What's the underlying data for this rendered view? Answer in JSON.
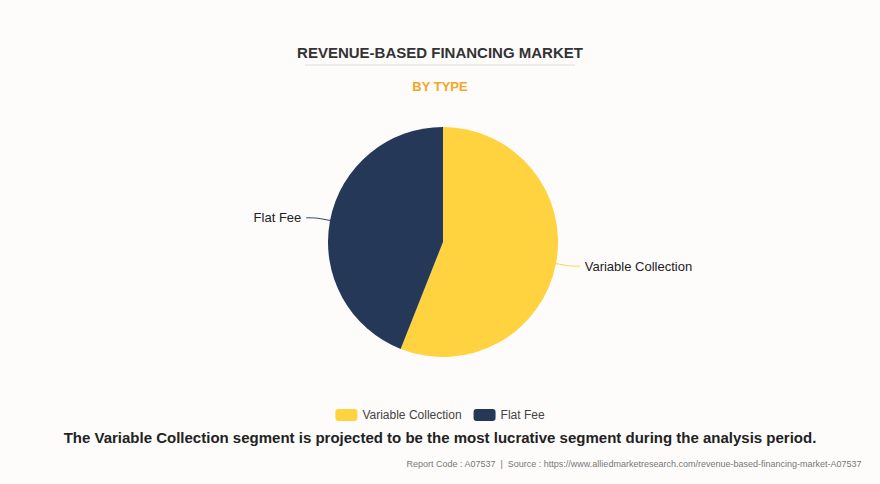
{
  "chart_data": {
    "type": "pie",
    "title": "REVENUE-BASED FINANCING MARKET",
    "subtitle": "BY TYPE",
    "categories": [
      "Variable Collection",
      "Flat Fee"
    ],
    "values": [
      56,
      44
    ],
    "colors": [
      "#ffd23f",
      "#253858"
    ],
    "legend": "bottom",
    "annotations": [
      "The Variable Collection segment is projected to be the most lucrative segment during the analysis period.",
      "Report Code : A07537  |  Source : https://www.alliedmarketresearch.com/revenue-based-financing-market-A07537"
    ]
  }
}
